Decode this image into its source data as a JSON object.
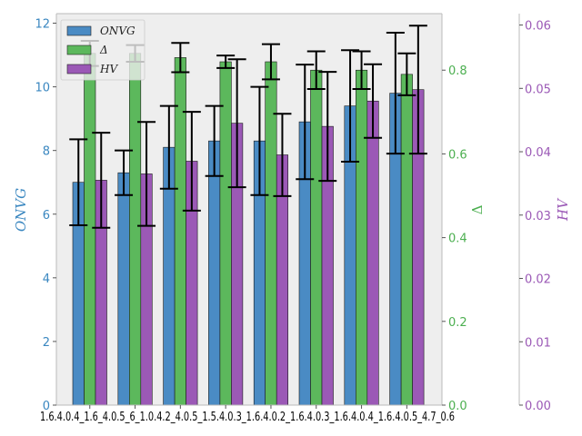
{
  "chart_data": {
    "type": "bar",
    "categories": [
      "1.6.4.0.4_0.6",
      "1.6_4.0.5_0.6",
      "1.0.4.2.0.5_0.6",
      "1.5.4.0.3_0.6",
      "1.6.4.0.2_0.6",
      "1.6.4.0.3_0.6",
      "1.6.4.0.5_0.6",
      "1.5.4.7_0.6"
    ],
    "tick_labels_text": "1.6.4.0.4_1.6_4.0.5_6_1.0.4.2_4.0.5_1.5.4.0.3_1.6.4.0.2_1.6.4.0.3_1.6.4.0.4_1.6.4.0.5_4.7_0.6",
    "axes": {
      "left": {
        "label": "ONVG",
        "ylim": [
          0,
          12.3
        ],
        "ticks": [
          0,
          2,
          4,
          6,
          8,
          10,
          12
        ],
        "color": "#3a87c0"
      },
      "right1": {
        "label": "Δ",
        "ylim": [
          0,
          0.935
        ],
        "ticks": [
          "0.0",
          "0.2",
          "0.4",
          "0.6",
          "0.8"
        ],
        "tick_values": [
          0,
          0.2,
          0.4,
          0.6,
          0.8
        ],
        "color": "#4caf50"
      },
      "right2": {
        "label": "HV",
        "ylim": [
          0,
          0.0618
        ],
        "ticks": [
          "0.00",
          "0.01",
          "0.02",
          "0.03",
          "0.04",
          "0.05",
          "0.06"
        ],
        "tick_values": [
          0,
          0.01,
          0.02,
          0.03,
          0.04,
          0.05,
          0.06
        ],
        "color": "#9b59b6"
      }
    },
    "series": [
      {
        "name": "ONVG",
        "axis": "left",
        "color": "#4a8bc4",
        "values": [
          7.0,
          7.3,
          8.1,
          8.3,
          8.3,
          8.9,
          9.4,
          9.8
        ],
        "errors": [
          1.35,
          0.7,
          1.3,
          1.1,
          1.7,
          1.8,
          1.75,
          1.9
        ]
      },
      {
        "name": "Δ",
        "axis": "right1",
        "color": "#5cb85c",
        "values": [
          0.84,
          0.84,
          0.83,
          0.82,
          0.82,
          0.8,
          0.8,
          0.79
        ],
        "errors": [
          0.03,
          0.02,
          0.035,
          0.015,
          0.042,
          0.045,
          0.045,
          0.05
        ]
      },
      {
        "name": "HV",
        "axis": "right2",
        "color": "#9b59b6",
        "values": [
          0.0355,
          0.0365,
          0.0385,
          0.0445,
          0.0395,
          0.044,
          0.048,
          0.0498
        ],
        "errors": [
          0.0075,
          0.0082,
          0.0078,
          0.0101,
          0.0065,
          0.0086,
          0.0058,
          0.0101
        ]
      }
    ],
    "legend": {
      "placement": "top-left",
      "entries": [
        "ONVG",
        "Δ",
        "HV"
      ]
    },
    "grid": false,
    "background": "#eeeeee"
  }
}
